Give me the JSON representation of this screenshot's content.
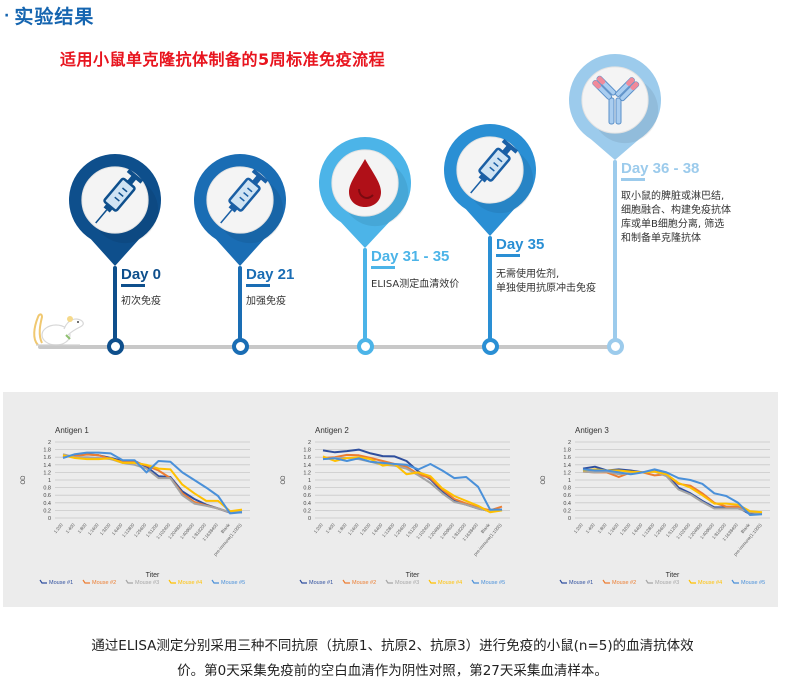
{
  "header": {
    "section_title": "实验结果",
    "bullet": "·",
    "subtitle": "适用小鼠单克隆抗体制备的5周标准免疫流程"
  },
  "timeline": {
    "steps": [
      {
        "day": "Day 0",
        "desc": "初次免疫",
        "icon": "syringe-icon",
        "color": "#0e4f8c"
      },
      {
        "day": "Day 21",
        "desc": "加强免疫",
        "icon": "syringe-icon",
        "color": "#1a6db4"
      },
      {
        "day": "Day 31 - 35",
        "desc": "ELISA测定血清效价",
        "icon": "blood-drop-icon",
        "color": "#4cb4e8"
      },
      {
        "day": "Day 35",
        "desc": "无需使用佐剂,\n单独使用抗原冲击免疫",
        "icon": "syringe-icon",
        "color": "#2a8fd4"
      },
      {
        "day": "Day 36 - 38",
        "desc": "取小鼠的脾脏或淋巴结,\n细胞融合、构建免疫抗体\n库或单B细胞分离, 筛选\n和制备单克隆抗体",
        "icon": "antibody-icon",
        "color": "#9ccbec"
      }
    ]
  },
  "chart_data": [
    {
      "type": "line",
      "title": "Antigen 1",
      "xlabel": "Titer",
      "ylabel": "OD",
      "ylim": [
        0,
        2
      ],
      "yticks": [
        "0",
        "0.2",
        "0.4",
        "0.6",
        "0.8",
        "1",
        "1.2",
        "1.4",
        "1.6",
        "1.8",
        "2"
      ],
      "grid": true,
      "legend_position": "bottom",
      "categories": [
        "1:200",
        "1:400",
        "1:800",
        "1:1600",
        "1:3200",
        "1:6400",
        "1:12800",
        "1:25600",
        "1:51200",
        "1:102400",
        "1:204800",
        "1:409600",
        "1:819200",
        "1:1638400",
        "Blank",
        "pre-immune(1:1000)"
      ],
      "series": [
        {
          "name": "Mouse #1",
          "color": "#2f4f9e",
          "values": [
            1.6,
            1.65,
            1.68,
            1.65,
            1.58,
            1.5,
            1.5,
            1.35,
            1.1,
            1.08,
            0.7,
            0.5,
            0.35,
            0.25,
            0.14,
            0.15
          ]
        },
        {
          "name": "Mouse #2",
          "color": "#ed7d31",
          "values": [
            1.62,
            1.63,
            1.67,
            1.65,
            1.55,
            1.48,
            1.48,
            1.38,
            1.25,
            1.05,
            0.65,
            0.42,
            0.33,
            0.25,
            0.15,
            0.15
          ]
        },
        {
          "name": "Mouse #3",
          "color": "#a5a5a5",
          "values": [
            1.68,
            1.6,
            1.6,
            1.58,
            1.55,
            1.45,
            1.4,
            1.3,
            1.05,
            1.05,
            0.6,
            0.38,
            0.32,
            0.25,
            0.15,
            0.18
          ]
        },
        {
          "name": "Mouse #4",
          "color": "#ffc000",
          "values": [
            1.65,
            1.58,
            1.55,
            1.55,
            1.57,
            1.45,
            1.45,
            1.4,
            1.3,
            1.28,
            0.88,
            0.65,
            0.45,
            0.45,
            0.18,
            0.22
          ]
        },
        {
          "name": "Mouse #5",
          "color": "#4a90d9",
          "values": [
            1.58,
            1.68,
            1.72,
            1.72,
            1.7,
            1.52,
            1.52,
            1.2,
            1.5,
            1.48,
            1.2,
            1.0,
            0.8,
            0.58,
            0.12,
            0.15
          ]
        }
      ]
    },
    {
      "type": "line",
      "title": "Antigen 2",
      "xlabel": "Titer",
      "ylabel": "OD",
      "ylim": [
        0,
        2
      ],
      "yticks": [
        "0",
        "0.2",
        "0.4",
        "0.6",
        "0.8",
        "1",
        "1.2",
        "1.4",
        "1.6",
        "1.8",
        "2"
      ],
      "grid": true,
      "legend_position": "bottom",
      "categories": [
        "1:200",
        "1:400",
        "1:800",
        "1:1600",
        "1:3200",
        "1:6400",
        "1:12800",
        "1:25600",
        "1:51200",
        "1:102400",
        "1:204800",
        "1:409600",
        "1:819200",
        "1:1638400",
        "Blank",
        "pre-immune(1:1000)"
      ],
      "series": [
        {
          "name": "Mouse #1",
          "color": "#2f4f9e",
          "values": [
            1.78,
            1.73,
            1.76,
            1.8,
            1.7,
            1.63,
            1.62,
            1.5,
            1.22,
            1.02,
            0.7,
            0.45,
            0.35,
            0.25,
            0.18,
            0.22
          ]
        },
        {
          "name": "Mouse #2",
          "color": "#ed7d31",
          "values": [
            1.58,
            1.6,
            1.66,
            1.65,
            1.58,
            1.5,
            1.42,
            1.35,
            1.15,
            1.05,
            0.75,
            0.5,
            0.38,
            0.28,
            0.2,
            0.3
          ]
        },
        {
          "name": "Mouse #3",
          "color": "#a5a5a5",
          "values": [
            1.55,
            1.58,
            1.58,
            1.55,
            1.48,
            1.4,
            1.38,
            1.3,
            1.12,
            0.92,
            0.65,
            0.42,
            0.35,
            0.25,
            0.18,
            0.2
          ]
        },
        {
          "name": "Mouse #4",
          "color": "#ffc000",
          "values": [
            1.62,
            1.5,
            1.58,
            1.6,
            1.55,
            1.38,
            1.42,
            1.15,
            1.2,
            1.1,
            0.78,
            0.58,
            0.45,
            0.32,
            0.15,
            0.2
          ]
        },
        {
          "name": "Mouse #5",
          "color": "#4a90d9",
          "values": [
            1.55,
            1.57,
            1.5,
            1.57,
            1.48,
            1.45,
            1.42,
            1.4,
            1.28,
            1.42,
            1.25,
            1.05,
            1.08,
            0.82,
            0.22,
            0.22
          ]
        }
      ]
    },
    {
      "type": "line",
      "title": "Antigen 3",
      "xlabel": "Titer",
      "ylabel": "OD",
      "ylim": [
        0,
        2
      ],
      "yticks": [
        "0",
        "0.2",
        "0.4",
        "0.6",
        "0.8",
        "1",
        "1.2",
        "1.4",
        "1.6",
        "1.8",
        "2"
      ],
      "grid": true,
      "legend_position": "bottom",
      "categories": [
        "1:200",
        "1:400",
        "1:800",
        "1:1600",
        "1:3200",
        "1:6400",
        "1:12800",
        "1:25600",
        "1:51200",
        "1:102400",
        "1:204800",
        "1:409600",
        "1:819200",
        "1:1638400",
        "Blank",
        "pre-immune(1:1000)"
      ],
      "series": [
        {
          "name": "Mouse #1",
          "color": "#2f4f9e",
          "values": [
            1.3,
            1.35,
            1.25,
            1.28,
            1.25,
            1.2,
            1.25,
            1.15,
            0.8,
            0.65,
            0.45,
            0.28,
            0.28,
            0.28,
            0.1,
            0.12
          ]
        },
        {
          "name": "Mouse #2",
          "color": "#ed7d31",
          "values": [
            1.22,
            1.2,
            1.2,
            1.08,
            1.2,
            1.2,
            1.12,
            1.15,
            0.9,
            0.85,
            0.65,
            0.4,
            0.3,
            0.3,
            0.15,
            0.12
          ]
        },
        {
          "name": "Mouse #3",
          "color": "#a5a5a5",
          "values": [
            1.22,
            1.2,
            1.22,
            1.15,
            1.18,
            1.2,
            1.22,
            1.1,
            0.75,
            0.62,
            0.42,
            0.25,
            0.25,
            0.25,
            0.15,
            0.12
          ]
        },
        {
          "name": "Mouse #4",
          "color": "#ffc000",
          "values": [
            1.25,
            1.28,
            1.25,
            1.25,
            1.22,
            1.2,
            1.22,
            1.15,
            0.92,
            0.8,
            0.6,
            0.38,
            0.38,
            0.35,
            0.18,
            0.15
          ]
        },
        {
          "name": "Mouse #5",
          "color": "#4a90d9",
          "values": [
            1.28,
            1.25,
            1.25,
            1.2,
            1.15,
            1.2,
            1.28,
            1.2,
            1.05,
            1.0,
            0.9,
            0.65,
            0.58,
            0.4,
            0.08,
            0.1
          ]
        }
      ]
    }
  ],
  "caption": {
    "line1": "通过ELISA测定分别采用三种不同抗原（抗原1、抗原2、抗原3）进行免疫的小鼠(n=5)的血清抗体效",
    "line2": "价。第0天采集免疫前的空白血清作为阴性对照，第27天采集血清样本。"
  }
}
